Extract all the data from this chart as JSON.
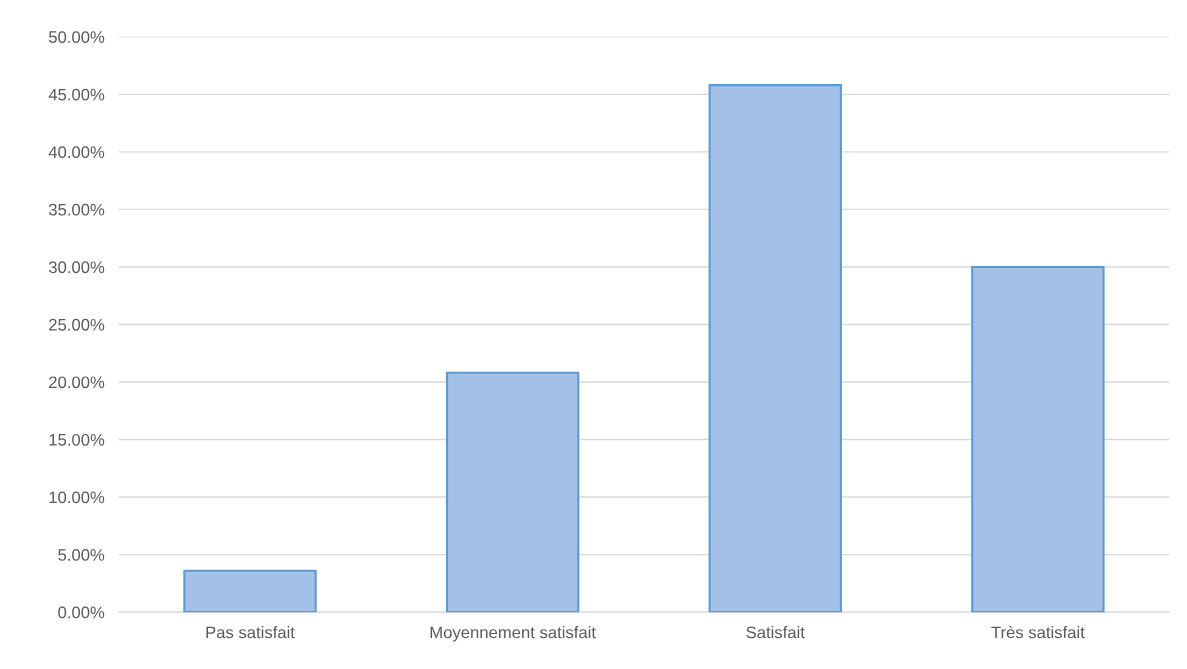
{
  "chart_data": {
    "type": "bar",
    "categories": [
      "Pas satisfait",
      "Moyennement satisfait",
      "Satisfait",
      "Très satisfait"
    ],
    "values": [
      3.6,
      20.8,
      45.8,
      30.0
    ],
    "color": "#a3c0e6",
    "ylim": [
      0,
      50
    ],
    "yticks": [
      {
        "value": 0,
        "label": "0.00%"
      },
      {
        "value": 5,
        "label": "5.00%"
      },
      {
        "value": 10,
        "label": "10.00%"
      },
      {
        "value": 15,
        "label": "15.00%"
      },
      {
        "value": 20,
        "label": "20.00%"
      },
      {
        "value": 25,
        "label": "25.00%"
      },
      {
        "value": 30,
        "label": "30.00%"
      },
      {
        "value": 35,
        "label": "35.00%"
      },
      {
        "value": 40,
        "label": "40.00%"
      },
      {
        "value": 45,
        "label": "45.00%"
      },
      {
        "value": 50,
        "label": "50.00%"
      }
    ],
    "grid": "y"
  }
}
